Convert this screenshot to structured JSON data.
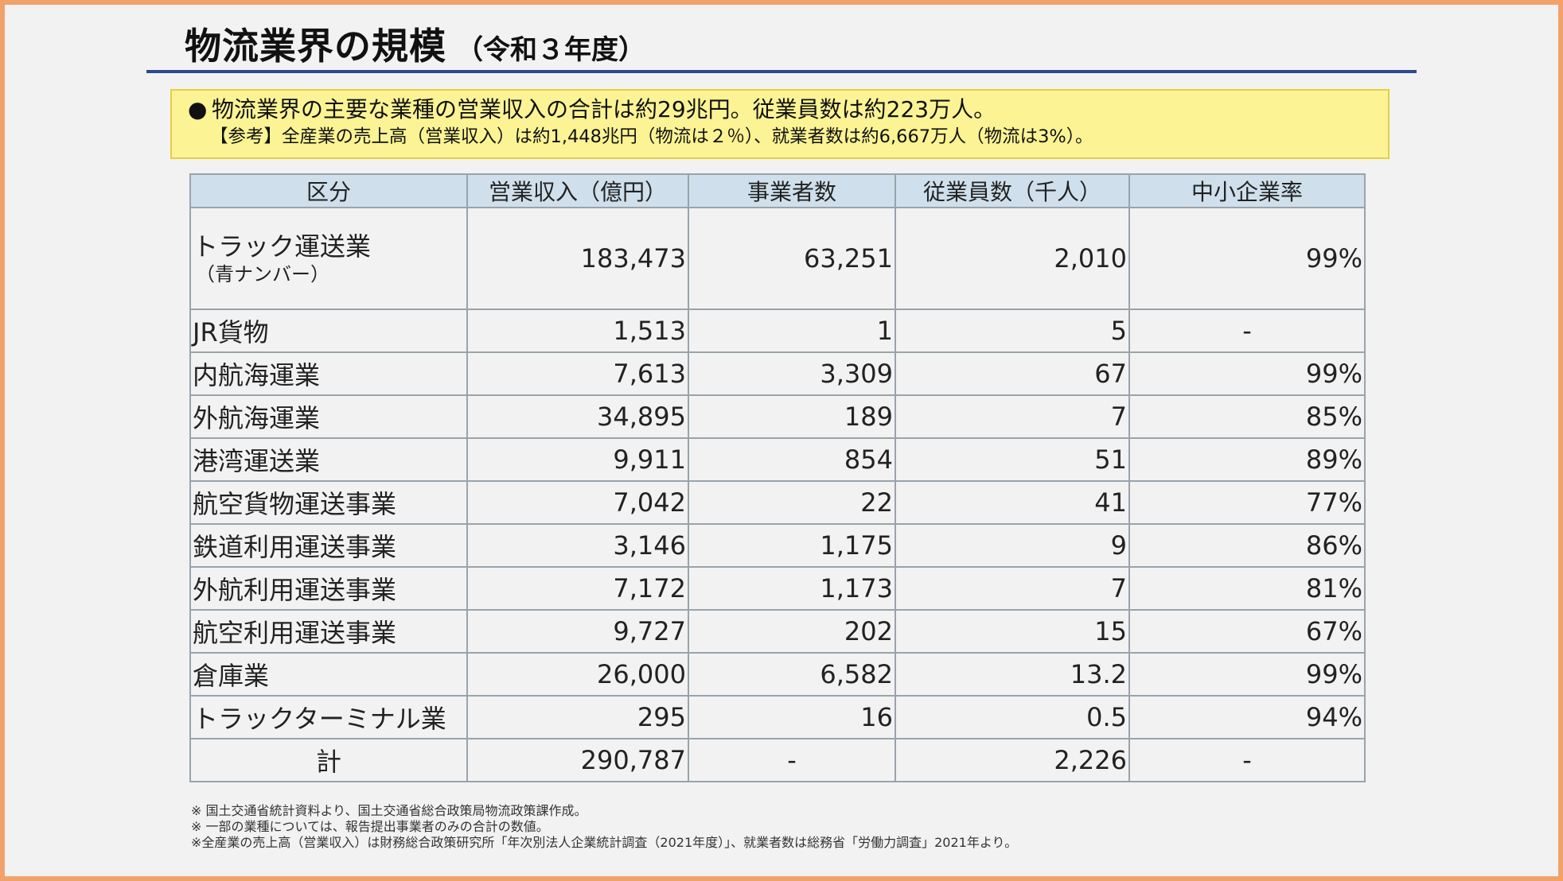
{
  "title": {
    "main": "物流業界の規模",
    "sub": "（令和３年度）"
  },
  "summary": {
    "bullet": "●",
    "line1": "物流業界の主要な業種の営業収入の合計は約29兆円。従業員数は約223万人。",
    "line2": "【参考】全産業の売上高（営業収入）は約1,448兆円（物流は２％）、就業者数は約6,667万人（物流は3%）。"
  },
  "table": {
    "headers": [
      "区分",
      "営業収入（億円）",
      "事業者数",
      "従業員数（千人）",
      "中小企業率"
    ],
    "rows": [
      {
        "label": "トラック運送業",
        "label_sub": "（青ナンバー）",
        "revenue": "183,473",
        "operators": "63,251",
        "employees": "2,010",
        "sme_rate": "99%"
      },
      {
        "label": "JR貨物",
        "revenue": "1,513",
        "operators": "1",
        "employees": "5",
        "sme_rate": "-"
      },
      {
        "label": "内航海運業",
        "revenue": "7,613",
        "operators": "3,309",
        "employees": "67",
        "sme_rate": "99%"
      },
      {
        "label": "外航海運業",
        "revenue": "34,895",
        "operators": "189",
        "employees": "7",
        "sme_rate": "85%"
      },
      {
        "label": "港湾運送業",
        "revenue": "9,911",
        "operators": "854",
        "employees": "51",
        "sme_rate": "89%"
      },
      {
        "label": "航空貨物運送事業",
        "revenue": "7,042",
        "operators": "22",
        "employees": "41",
        "sme_rate": "77%"
      },
      {
        "label": "鉄道利用運送事業",
        "revenue": "3,146",
        "operators": "1,175",
        "employees": "9",
        "sme_rate": "86%"
      },
      {
        "label": "外航利用運送事業",
        "revenue": "7,172",
        "operators": "1,173",
        "employees": "7",
        "sme_rate": "81%"
      },
      {
        "label": "航空利用運送事業",
        "revenue": "9,727",
        "operators": "202",
        "employees": "15",
        "sme_rate": "67%"
      },
      {
        "label": "倉庫業",
        "revenue": "26,000",
        "operators": "6,582",
        "employees": "13.2",
        "sme_rate": "99%"
      },
      {
        "label": "トラックターミナル業",
        "revenue": "295",
        "operators": "16",
        "employees": "0.5",
        "sme_rate": "94%"
      }
    ],
    "total": {
      "label": "計",
      "revenue": "290,787",
      "operators": "-",
      "employees": "2,226",
      "sme_rate": "-"
    }
  },
  "notes": [
    "※ 国土交通省統計資料より、国土交通省総合政策局物流政策課作成。",
    "※ 一部の業種については、報告提出事業者のみの合計の数値。",
    "※全産業の売上高（営業収入）は財務総合政策研究所「年次別法人企業統計調査（2021年度）」、就業者数は総務省「労働力調査」2021年より。"
  ]
}
